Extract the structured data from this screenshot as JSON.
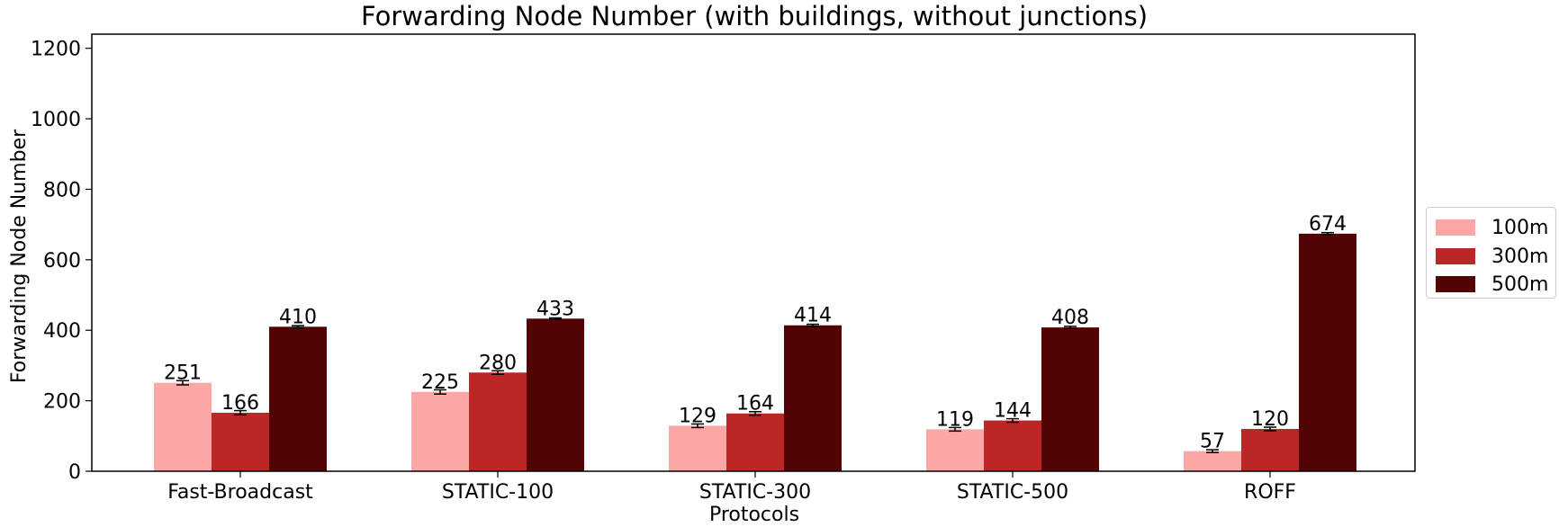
{
  "chart_data": {
    "type": "bar",
    "title": "Forwarding Node Number (with buildings, without junctions)",
    "xlabel": "Protocols",
    "ylabel": "Forwarding Node Number",
    "categories": [
      "Fast-Broadcast",
      "STATIC-100",
      "STATIC-300",
      "STATIC-500",
      "ROFF"
    ],
    "series": [
      {
        "name": "100m",
        "color": "#fca6a6",
        "values": [
          251,
          225,
          129,
          119,
          57
        ],
        "errors": [
          6,
          6,
          5,
          5,
          4
        ]
      },
      {
        "name": "300m",
        "color": "#bd2626",
        "values": [
          166,
          280,
          164,
          144,
          120
        ],
        "errors": [
          6,
          5,
          5,
          5,
          5
        ]
      },
      {
        "name": "500m",
        "color": "#520404",
        "values": [
          410,
          433,
          414,
          408,
          674
        ],
        "errors": [
          3,
          2,
          3,
          3,
          3
        ]
      }
    ],
    "ylim": [
      0,
      1240
    ],
    "yticks": [
      0,
      200,
      400,
      600,
      800,
      1000,
      1200
    ],
    "grid": false,
    "legend_position": "right, outside plot"
  }
}
